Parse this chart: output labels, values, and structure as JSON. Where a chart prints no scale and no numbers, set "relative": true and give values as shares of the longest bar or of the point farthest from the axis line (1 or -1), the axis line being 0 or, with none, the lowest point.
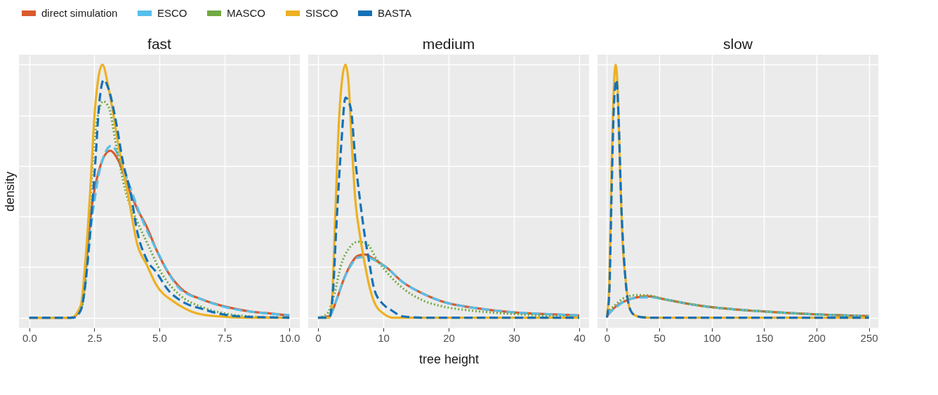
{
  "chart_data": [
    {
      "type": "line",
      "title": "fast",
      "ylabel": "density",
      "relative": true,
      "legend": "top",
      "grid": true,
      "xlim": [
        -0.4,
        10.4
      ],
      "xticks": [
        {
          "value": 0,
          "label": "0.0"
        },
        {
          "value": 2.5,
          "label": "2.5"
        },
        {
          "value": 5,
          "label": "5.0"
        },
        {
          "value": 7.5,
          "label": "7.5"
        },
        {
          "value": 10,
          "label": "10.0"
        }
      ],
      "series": [
        {
          "name": "direct simulation",
          "color": "#d95a2b",
          "line_style": "solid",
          "x": [
            0,
            1.6,
            2.0,
            2.16,
            2.43,
            2.7,
            3.11,
            3.43,
            3.79,
            4.15,
            4.51,
            4.88,
            5.33,
            5.78,
            6.69,
            7.6,
            8.5,
            9.41,
            10
          ],
          "values": [
            0,
            0,
            0.04,
            0.19,
            0.46,
            0.59,
            0.66,
            0.62,
            0.52,
            0.43,
            0.36,
            0.27,
            0.18,
            0.12,
            0.07,
            0.042,
            0.024,
            0.015,
            0.008
          ]
        },
        {
          "name": "ESCO",
          "color": "#56bfeb",
          "line_style": "dashed",
          "x": [
            0,
            1.6,
            2.0,
            2.43,
            2.7,
            3.16,
            3.43,
            3.79,
            4.33,
            4.88,
            5.78,
            6.69,
            7.6,
            8.5,
            10
          ],
          "values": [
            0,
            0,
            0.04,
            0.41,
            0.58,
            0.68,
            0.64,
            0.54,
            0.39,
            0.27,
            0.115,
            0.07,
            0.04,
            0.024,
            0.01
          ]
        },
        {
          "name": "MASCO",
          "color": "#72a942",
          "line_style": "dotted",
          "x": [
            0,
            1.6,
            2.0,
            2.16,
            2.34,
            2.52,
            2.84,
            3.06,
            3.34,
            3.7,
            4.15,
            4.6,
            5.06,
            5.78,
            6.69,
            7.6,
            8.5,
            10
          ],
          "values": [
            0,
            0,
            0.04,
            0.14,
            0.46,
            0.72,
            0.855,
            0.83,
            0.68,
            0.5,
            0.38,
            0.28,
            0.18,
            0.09,
            0.04,
            0.015,
            0.005,
            0
          ]
        },
        {
          "name": "SISCO",
          "color": "#ecb123",
          "line_style": "solid",
          "x": [
            0,
            1.6,
            1.98,
            2.16,
            2.34,
            2.52,
            2.81,
            3.06,
            3.43,
            3.79,
            4.15,
            4.51,
            4.88,
            5.6,
            6.24,
            7.14,
            8.5,
            10
          ],
          "values": [
            0,
            0,
            0.05,
            0.23,
            0.5,
            0.82,
            1,
            0.9,
            0.68,
            0.49,
            0.29,
            0.21,
            0.13,
            0.06,
            0.024,
            0.006,
            0,
            0
          ]
        },
        {
          "name": "BASTA",
          "color": "#1571b6",
          "line_style": "dashed",
          "x": [
            0,
            1.7,
            1.98,
            2.16,
            2.34,
            2.52,
            2.7,
            2.86,
            3.06,
            3.34,
            3.61,
            3.88,
            4.15,
            4.51,
            4.88,
            5.33,
            5.78,
            6.69,
            7.33,
            8.05,
            10
          ],
          "values": [
            0,
            0,
            0.03,
            0.14,
            0.34,
            0.59,
            0.86,
            0.94,
            0.9,
            0.77,
            0.61,
            0.5,
            0.34,
            0.23,
            0.18,
            0.11,
            0.07,
            0.033,
            0.015,
            0.005,
            0
          ]
        }
      ]
    },
    {
      "type": "line",
      "title": "medium",
      "xlabel": "tree height",
      "relative": true,
      "grid": true,
      "xlim": [
        -1.5,
        41.5
      ],
      "xticks": [
        0,
        10,
        20,
        30,
        40
      ],
      "series": [
        {
          "name": "direct simulation",
          "color": "#d95a2b",
          "line_style": "solid",
          "x": [
            0,
            1.74,
            2.83,
            3.92,
            5.0,
            6.1,
            7.18,
            8.63,
            10.4,
            13.0,
            15.9,
            19.5,
            23.1,
            26.8,
            30.4,
            34,
            40
          ],
          "values": [
            0,
            0.006,
            0.07,
            0.15,
            0.21,
            0.245,
            0.25,
            0.23,
            0.2,
            0.14,
            0.097,
            0.06,
            0.042,
            0.029,
            0.02,
            0.015,
            0.009
          ]
        },
        {
          "name": "ESCO",
          "color": "#56bfeb",
          "line_style": "dashed",
          "x": [
            0,
            1.74,
            2.83,
            3.92,
            5.0,
            6.1,
            7.18,
            8.63,
            10.4,
            13.0,
            15.9,
            19.5,
            23.1,
            26.8,
            30.4,
            34,
            40
          ],
          "values": [
            0,
            0.006,
            0.07,
            0.15,
            0.205,
            0.237,
            0.24,
            0.228,
            0.2,
            0.14,
            0.097,
            0.06,
            0.042,
            0.029,
            0.02,
            0.015,
            0.009
          ]
        },
        {
          "name": "MASCO",
          "color": "#72a942",
          "line_style": "dotted",
          "x": [
            0,
            1.38,
            2.47,
            3.55,
            4.64,
            6.1,
            7.54,
            9.0,
            11.2,
            13.3,
            15.9,
            19.5,
            23.1,
            26.8,
            32.2,
            40
          ],
          "values": [
            0,
            0.015,
            0.09,
            0.21,
            0.27,
            0.3,
            0.29,
            0.23,
            0.16,
            0.11,
            0.07,
            0.042,
            0.029,
            0.02,
            0.011,
            0.002
          ]
        },
        {
          "name": "SISCO",
          "color": "#ecb123",
          "line_style": "solid",
          "x": [
            0,
            1.74,
            2.1,
            2.65,
            3.19,
            3.73,
            4.2,
            4.64,
            5.18,
            5.73,
            6.45,
            7.18,
            7.9,
            8.63,
            10.1,
            11.5,
            40
          ],
          "values": [
            0,
            0,
            0.05,
            0.41,
            0.77,
            0.95,
            1,
            0.94,
            0.68,
            0.46,
            0.32,
            0.21,
            0.12,
            0.06,
            0.015,
            0,
            0
          ]
        },
        {
          "name": "BASTA",
          "color": "#1571b6",
          "line_style": "dashed",
          "x": [
            0,
            1.74,
            2.28,
            2.83,
            3.55,
            4.2,
            5.0,
            5.73,
            6.45,
            7.18,
            7.9,
            8.63,
            10.1,
            11.2,
            13,
            16,
            40
          ],
          "values": [
            0,
            0,
            0.1,
            0.37,
            0.68,
            0.87,
            0.83,
            0.62,
            0.46,
            0.32,
            0.21,
            0.11,
            0.05,
            0.03,
            0.005,
            0,
            0
          ]
        }
      ]
    },
    {
      "type": "line",
      "title": "slow",
      "relative": true,
      "grid": true,
      "xlim": [
        -9,
        259
      ],
      "xticks": [
        0,
        50,
        100,
        150,
        200,
        250
      ],
      "series": [
        {
          "name": "direct simulation",
          "color": "#d95a2b",
          "line_style": "solid",
          "x": [
            0,
            7.9,
            17,
            28.3,
            39.7,
            53.3,
            75.9,
            98.6,
            121,
            144,
            167,
            189,
            212,
            250
          ],
          "values": [
            0.006,
            0.042,
            0.065,
            0.08,
            0.084,
            0.074,
            0.056,
            0.042,
            0.033,
            0.026,
            0.02,
            0.015,
            0.011,
            0.006
          ]
        },
        {
          "name": "ESCO",
          "color": "#56bfeb",
          "line_style": "dashed",
          "x": [
            0,
            7.9,
            17,
            30.6,
            41.9,
            53.3,
            75.9,
            98.6,
            121,
            144,
            167,
            189,
            212,
            250
          ],
          "values": [
            0.011,
            0.038,
            0.065,
            0.079,
            0.08,
            0.074,
            0.056,
            0.042,
            0.033,
            0.026,
            0.02,
            0.015,
            0.011,
            0.006
          ]
        },
        {
          "name": "MASCO",
          "color": "#72a942",
          "line_style": "dotted",
          "x": [
            0,
            7.9,
            17,
            28.3,
            39.7,
            53.3,
            75.9,
            98.6,
            121,
            144,
            167,
            189,
            212,
            250
          ],
          "values": [
            0.02,
            0.05,
            0.079,
            0.089,
            0.088,
            0.074,
            0.056,
            0.042,
            0.033,
            0.026,
            0.02,
            0.015,
            0.011,
            0.006
          ]
        },
        {
          "name": "SISCO",
          "color": "#ecb123",
          "line_style": "solid",
          "x": [
            0,
            2.3,
            4.5,
            6.8,
            8.4,
            10.2,
            12.5,
            14.7,
            18.1,
            21.5,
            26,
            32.9,
            41.9,
            250
          ],
          "values": [
            0.006,
            0.14,
            0.59,
            0.93,
            1,
            0.91,
            0.59,
            0.32,
            0.14,
            0.04,
            0.011,
            0.002,
            0,
            0
          ]
        },
        {
          "name": "BASTA",
          "color": "#1571b6",
          "line_style": "dashed",
          "x": [
            0,
            2.3,
            4.5,
            6.8,
            9.1,
            11.3,
            13.6,
            17,
            21.5,
            26,
            32.9,
            41.9,
            250
          ],
          "values": [
            0,
            0.1,
            0.5,
            0.85,
            0.94,
            0.77,
            0.46,
            0.19,
            0.04,
            0.011,
            0.002,
            0,
            0
          ]
        }
      ]
    }
  ]
}
